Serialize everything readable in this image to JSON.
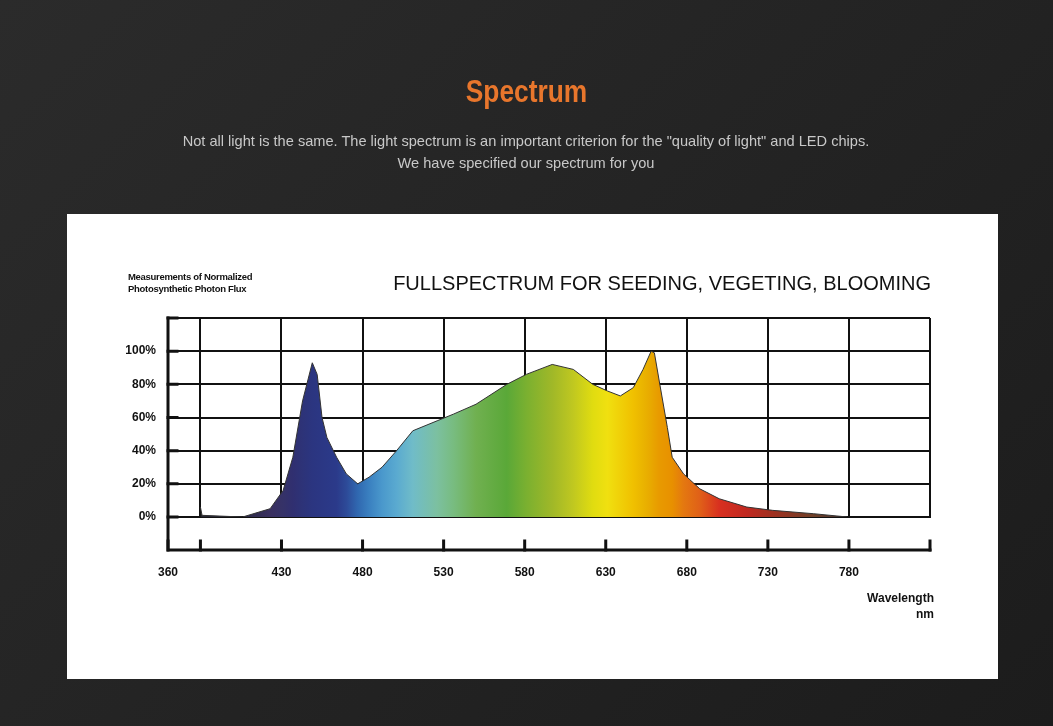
{
  "chart_data": {
    "type": "area",
    "title": "Spectrum",
    "subtitle": "Not all light is the same. The light spectrum is an important criterion for the \"quality of light\" and LED chips. We have specified our spectrum for you",
    "annotations": [
      "FULLSPECTRUM FOR SEEDING, VEGETING, BLOOMING"
    ],
    "ylabel": "Measurements of Normalized Photosynthetic Photon Flux",
    "xlabel": "Wavelength nm",
    "x": [
      380,
      381,
      406,
      423,
      431,
      437,
      443,
      449,
      452,
      455,
      458,
      464,
      470,
      477,
      484,
      492,
      501,
      511,
      526,
      536,
      550,
      569,
      581,
      597,
      610,
      622,
      631,
      639,
      647,
      653,
      658,
      660,
      663,
      668,
      671,
      678,
      688,
      700,
      717,
      733,
      758,
      779
    ],
    "series": [
      {
        "color": "#333333",
        "values": [
          6,
          1,
          0,
          5,
          16,
          36,
          70,
          93,
          86,
          60,
          48,
          36,
          26,
          20,
          24,
          30,
          40,
          52,
          58,
          62,
          68,
          80,
          86,
          92,
          89,
          80,
          76,
          73,
          78,
          89,
          100,
          99,
          82,
          54,
          36,
          26,
          17,
          11,
          6,
          4,
          2,
          0
        ],
        "colors": [
          "#202020",
          "#252530",
          "#2a2a45",
          "#3a3060",
          "#353268",
          "#302f70",
          "#2d3378",
          "#2b3580",
          "#2b3682",
          "#2b3784",
          "#2b3886",
          "#2b3a8a",
          "#2d4a98",
          "#3068b0",
          "#3a80c0",
          "#4a98cc",
          "#5aaad0",
          "#70bcc8",
          "#7cc0a0",
          "#78bc80",
          "#70b050",
          "#5aa838",
          "#7ab030",
          "#a0b828",
          "#c0c820",
          "#e0dc10",
          "#f0e010",
          "#f0d008",
          "#f0c000",
          "#eab400",
          "#e8a800",
          "#e8a200",
          "#e89a00",
          "#e89400",
          "#e89000",
          "#e47810",
          "#e06018",
          "#d83020",
          "#c02820",
          "#a03020",
          "#704028",
          "#403030"
        ]
      }
    ],
    "xlim": [
      360,
      830
    ],
    "xticks": [
      360,
      {
        "value": 380,
        "label": null
      },
      430,
      480,
      530,
      580,
      630,
      680,
      730,
      780,
      {
        "value": 830,
        "label": null
      }
    ],
    "ylim": [
      0,
      120
    ],
    "yticks": [
      {
        "value": 0,
        "label": "0%"
      },
      {
        "value": 20,
        "label": "20%"
      },
      {
        "value": 40,
        "label": "40%"
      },
      {
        "value": 60,
        "label": "60%"
      },
      {
        "value": 80,
        "label": "80%"
      },
      {
        "value": 100,
        "label": "100%"
      },
      {
        "value": 120,
        "label": null
      }
    ],
    "grid": true,
    "legend": false,
    "marker": "none",
    "line_style": "solid"
  }
}
